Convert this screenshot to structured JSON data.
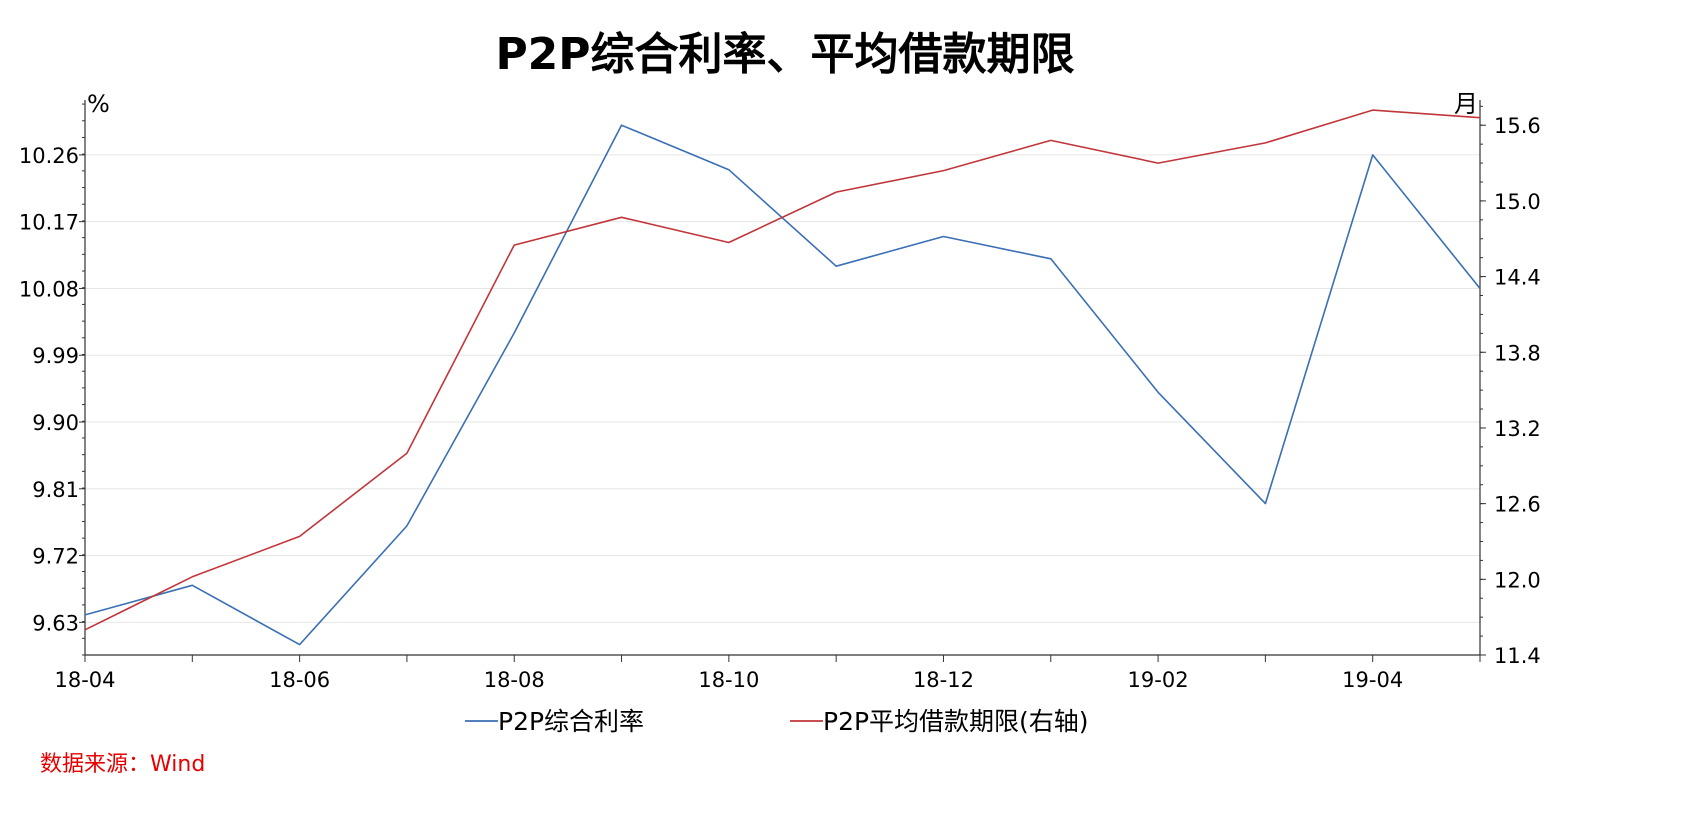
{
  "chart_data": {
    "type": "line",
    "title": "P2P综合利率、平均借款期限",
    "categories": [
      "18-04",
      "18-05",
      "18-06",
      "18-07",
      "18-08",
      "18-09",
      "18-10",
      "18-11",
      "18-12",
      "19-01",
      "19-02",
      "19-03",
      "19-04",
      "19-05"
    ],
    "x_tick_labels": [
      "18-04",
      "18-06",
      "18-08",
      "18-10",
      "18-12",
      "19-02",
      "19-04"
    ],
    "y_left": {
      "unit": "%",
      "ticks": [
        "9.63",
        "9.72",
        "9.81",
        "9.90",
        "9.99",
        "10.08",
        "10.17",
        "10.26"
      ],
      "range": [
        9.586,
        10.334
      ]
    },
    "y_right": {
      "unit": "月",
      "ticks": [
        "11.4",
        "12.0",
        "12.6",
        "13.2",
        "13.8",
        "14.4",
        "15.0",
        "15.6"
      ],
      "range": [
        11.4,
        15.8
      ]
    },
    "grid": true,
    "legend_position": "bottom",
    "series": [
      {
        "name": "P2P综合利率",
        "axis": "left",
        "color": "#3a6fb5",
        "values": [
          9.64,
          9.68,
          9.6,
          9.76,
          10.02,
          10.3,
          10.24,
          10.11,
          10.15,
          10.12,
          9.94,
          9.79,
          10.26,
          10.08
        ]
      },
      {
        "name": "P2P平均借款期限(右轴)",
        "axis": "right",
        "color": "#c0363a",
        "values": [
          11.6,
          12.02,
          12.34,
          13.0,
          14.65,
          14.87,
          14.67,
          15.07,
          15.24,
          15.48,
          15.3,
          15.46,
          15.72,
          15.66
        ]
      }
    ]
  },
  "source": "数据来源：Wind"
}
